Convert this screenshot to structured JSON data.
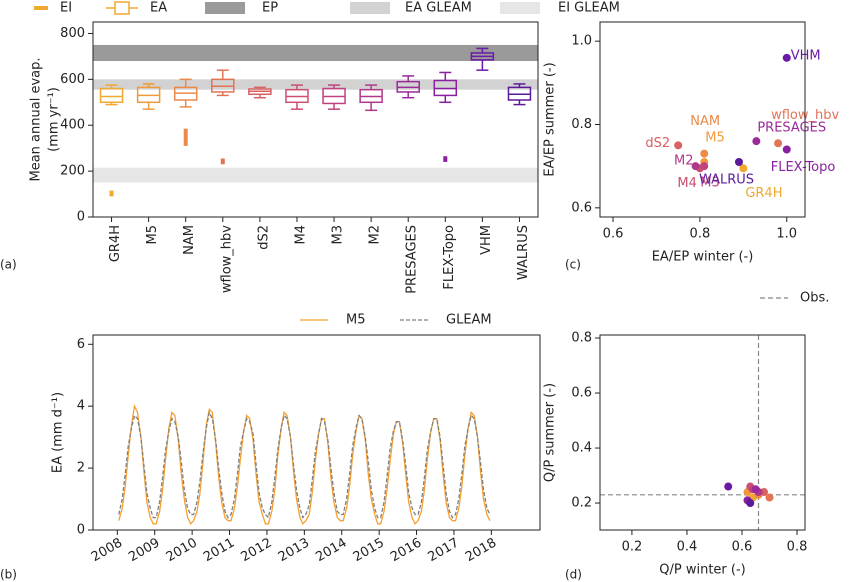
{
  "chart_data": [
    {
      "type": "box",
      "ylabel": [
        "Mean annual evap.",
        "(mm yr⁻¹)"
      ],
      "panel_label": "(a)",
      "categories": [
        "GR4H",
        "M5",
        "NAM",
        "wflow_hbv",
        "dS2",
        "M4",
        "M3",
        "M2",
        "PRESAGES",
        "FLEX-Topo",
        "VHM",
        "WALRUS"
      ],
      "colors": [
        "#f0a830",
        "#f09a3c",
        "#ec8a4a",
        "#e27456",
        "#d86262",
        "#cc4f70",
        "#c0427e",
        "#b0388a",
        "#9a2a9a",
        "#8a20a0",
        "#6a1aa8",
        "#5a1a9a"
      ],
      "boxes": {
        "name": "EA",
        "min": [
          490,
          470,
          480,
          530,
          520,
          470,
          470,
          465,
          520,
          500,
          640,
          490
        ],
        "q1": [
          500,
          500,
          510,
          545,
          535,
          500,
          495,
          500,
          545,
          530,
          685,
          510
        ],
        "median": [
          525,
          530,
          540,
          570,
          548,
          525,
          525,
          525,
          565,
          560,
          700,
          535
        ],
        "q3": [
          560,
          565,
          565,
          600,
          558,
          555,
          560,
          555,
          590,
          595,
          715,
          565
        ],
        "max": [
          575,
          580,
          600,
          640,
          565,
          575,
          575,
          575,
          615,
          630,
          735,
          580
        ]
      },
      "interception": {
        "name": "EI",
        "low": [
          90,
          null,
          310,
          230,
          null,
          null,
          null,
          null,
          null,
          240,
          null,
          null
        ],
        "high": [
          115,
          null,
          385,
          255,
          null,
          null,
          null,
          null,
          null,
          265,
          null,
          null
        ]
      },
      "bands": [
        {
          "name": "EP",
          "range": [
            680,
            750
          ],
          "color": "#9a9a9a"
        },
        {
          "name": "EA GLEAM",
          "range": [
            555,
            600
          ],
          "color": "#d2d2d2"
        },
        {
          "name": "EI GLEAM",
          "range": [
            150,
            215
          ],
          "color": "#e6e6e6"
        }
      ],
      "ylim": [
        0,
        850
      ],
      "yticks": [
        0,
        200,
        400,
        600,
        800
      ]
    },
    {
      "type": "line",
      "ylabel": "EA (mm d⁻¹)",
      "panel_label": "(b)",
      "x": [
        2008.04,
        2008.13,
        2008.21,
        2008.29,
        2008.38,
        2008.46,
        2008.54,
        2008.63,
        2008.71,
        2008.79,
        2008.88,
        2008.96,
        2009.04,
        2009.13,
        2009.21,
        2009.29,
        2009.38,
        2009.46,
        2009.54,
        2009.63,
        2009.71,
        2009.79,
        2009.88,
        2009.96,
        2010.04,
        2010.13,
        2010.21,
        2010.29,
        2010.38,
        2010.46,
        2010.54,
        2010.63,
        2010.71,
        2010.79,
        2010.88,
        2010.96,
        2011.04,
        2011.13,
        2011.21,
        2011.29,
        2011.38,
        2011.46,
        2011.54,
        2011.63,
        2011.71,
        2011.79,
        2011.88,
        2011.96,
        2012.04,
        2012.13,
        2012.21,
        2012.29,
        2012.38,
        2012.46,
        2012.54,
        2012.63,
        2012.71,
        2012.79,
        2012.88,
        2012.96,
        2013.04,
        2013.13,
        2013.21,
        2013.29,
        2013.38,
        2013.46,
        2013.54,
        2013.63,
        2013.71,
        2013.79,
        2013.88,
        2013.96,
        2014.04,
        2014.13,
        2014.21,
        2014.29,
        2014.38,
        2014.46,
        2014.54,
        2014.63,
        2014.71,
        2014.79,
        2014.88,
        2014.96,
        2015.04,
        2015.13,
        2015.21,
        2015.29,
        2015.38,
        2015.46,
        2015.54,
        2015.63,
        2015.71,
        2015.79,
        2015.88,
        2015.96,
        2016.04,
        2016.13,
        2016.21,
        2016.29,
        2016.38,
        2016.46,
        2016.54,
        2016.63,
        2016.71,
        2016.79,
        2016.88,
        2016.96,
        2017.04,
        2017.13,
        2017.21,
        2017.29,
        2017.38,
        2017.46,
        2017.54,
        2017.63,
        2017.71,
        2017.79,
        2017.88,
        2017.96
      ],
      "series": [
        {
          "name": "M5",
          "color": "#f5a030",
          "dash": false,
          "values": [
            0.3,
            0.7,
            1.4,
            2.4,
            3.4,
            4.0,
            3.8,
            3.0,
            1.9,
            0.9,
            0.4,
            0.2,
            0.2,
            0.6,
            1.3,
            2.3,
            3.3,
            3.8,
            3.7,
            2.9,
            1.8,
            1.0,
            0.4,
            0.2,
            0.3,
            0.6,
            1.2,
            2.2,
            3.4,
            3.9,
            3.8,
            2.8,
            1.7,
            0.9,
            0.4,
            0.3,
            0.3,
            0.7,
            1.4,
            2.3,
            3.2,
            3.7,
            3.6,
            2.9,
            1.8,
            0.9,
            0.5,
            0.2,
            0.2,
            0.6,
            1.3,
            2.4,
            3.3,
            3.8,
            3.7,
            3.0,
            1.9,
            1.0,
            0.4,
            0.2,
            0.3,
            0.5,
            1.2,
            2.2,
            3.1,
            3.6,
            3.6,
            2.8,
            1.7,
            0.9,
            0.4,
            0.3,
            0.3,
            0.7,
            1.4,
            2.4,
            3.2,
            3.7,
            3.6,
            2.9,
            1.8,
            1.0,
            0.5,
            0.2,
            0.2,
            0.6,
            1.3,
            2.2,
            3.1,
            3.5,
            3.5,
            2.8,
            1.8,
            0.9,
            0.4,
            0.2,
            0.3,
            0.6,
            1.3,
            2.3,
            3.2,
            3.6,
            3.6,
            2.9,
            1.8,
            0.9,
            0.4,
            0.3,
            0.3,
            0.7,
            1.4,
            2.4,
            3.3,
            3.8,
            3.7,
            3.0,
            1.9,
            1.0,
            0.5,
            0.3
          ]
        },
        {
          "name": "GLEAM",
          "color": "#808080",
          "dash": true,
          "values": [
            0.5,
            1.0,
            1.8,
            2.7,
            3.3,
            3.7,
            3.6,
            3.0,
            2.1,
            1.2,
            0.7,
            0.4,
            0.4,
            0.9,
            1.7,
            2.6,
            3.2,
            3.6,
            3.5,
            3.0,
            2.2,
            1.3,
            0.7,
            0.5,
            0.5,
            0.9,
            1.6,
            2.5,
            3.3,
            3.8,
            3.6,
            2.9,
            2.0,
            1.2,
            0.6,
            0.4,
            0.5,
            1.0,
            1.8,
            2.7,
            3.2,
            3.6,
            3.5,
            3.1,
            2.1,
            1.2,
            0.7,
            0.5,
            0.4,
            0.9,
            1.7,
            2.6,
            3.3,
            3.7,
            3.6,
            3.0,
            2.1,
            1.3,
            0.7,
            0.4,
            0.5,
            0.8,
            1.6,
            2.5,
            3.1,
            3.6,
            3.5,
            2.9,
            2.0,
            1.2,
            0.6,
            0.5,
            0.5,
            1.0,
            1.8,
            2.7,
            3.3,
            3.7,
            3.6,
            3.0,
            2.2,
            1.3,
            0.7,
            0.4,
            0.4,
            0.9,
            1.7,
            2.6,
            3.2,
            3.5,
            3.5,
            2.9,
            2.1,
            1.2,
            0.7,
            0.5,
            0.5,
            0.9,
            1.7,
            2.6,
            3.2,
            3.6,
            3.6,
            3.0,
            2.1,
            1.2,
            0.6,
            0.4,
            0.5,
            1.0,
            1.8,
            2.7,
            3.3,
            3.7,
            3.6,
            3.0,
            2.2,
            1.3,
            0.7,
            0.5
          ]
        }
      ],
      "xlim": [
        2007.35,
        2019.3
      ],
      "xticks": [
        2008,
        2009,
        2010,
        2011,
        2012,
        2013,
        2014,
        2015,
        2016,
        2017,
        2018
      ],
      "ylim": [
        0,
        6.3
      ],
      "yticks": [
        0,
        2,
        4,
        6
      ]
    },
    {
      "type": "scatter",
      "xlabel": "EA/EP winter (-)",
      "ylabel": "EA/EP summer (-)",
      "panel_label": "(c)",
      "labels": [
        "GR4H",
        "M5",
        "NAM",
        "wflow_hbv",
        "dS2",
        "M4",
        "M3",
        "M2",
        "PRESAGES",
        "FLEX-Topo",
        "VHM",
        "WALRUS"
      ],
      "colors": [
        "#f0a830",
        "#f09a3c",
        "#ec8a4a",
        "#e27456",
        "#d86262",
        "#cc4f70",
        "#c0427e",
        "#b0388a",
        "#9a2a9a",
        "#8a20a0",
        "#6a1aa8",
        "#5a1a9a"
      ],
      "x": [
        0.9,
        0.81,
        0.81,
        0.98,
        0.75,
        0.8,
        0.81,
        0.79,
        0.93,
        1.0,
        1.0,
        0.89
      ],
      "y": [
        0.695,
        0.71,
        0.73,
        0.755,
        0.75,
        0.695,
        0.7,
        0.7,
        0.76,
        0.74,
        0.96,
        0.71
      ],
      "xlim": [
        0.57,
        1.042
      ],
      "xticks": [
        0.6,
        0.8,
        {
          "value": 1,
          "label": "1.0"
        }
      ],
      "ylim": [
        0.578,
        1.046
      ],
      "yticks": [
        0.6,
        0.8,
        {
          "value": 1,
          "label": "1.0"
        }
      ]
    },
    {
      "type": "scatter",
      "xlabel": "Q/P winter (-)",
      "ylabel": "Q/P summer (-)",
      "panel_label": "(d)",
      "colors": [
        "#f0a830",
        "#f09a3c",
        "#ec8a4a",
        "#e27456",
        "#d86262",
        "#cc4f70",
        "#c0427e",
        "#b0388a",
        "#9a2a9a",
        "#8a20a0",
        "#6a1aa8",
        "#5a1a9a"
      ],
      "x": [
        0.64,
        0.62,
        0.66,
        0.7,
        0.68,
        0.63,
        0.64,
        0.66,
        0.65,
        0.62,
        0.55,
        0.63
      ],
      "y": [
        0.22,
        0.24,
        0.23,
        0.22,
        0.24,
        0.26,
        0.25,
        0.24,
        0.25,
        0.21,
        0.26,
        0.2
      ],
      "obs": {
        "name": "Obs.",
        "x": 0.66,
        "y": 0.23,
        "color": "#888888"
      },
      "xlim": [
        0.084,
        0.829
      ],
      "xticks": [
        0.2,
        0.4,
        0.6,
        0.8
      ],
      "ylim": [
        0.102,
        0.811
      ],
      "yticks": [
        0.2,
        0.4,
        0.6,
        0.8
      ]
    }
  ]
}
